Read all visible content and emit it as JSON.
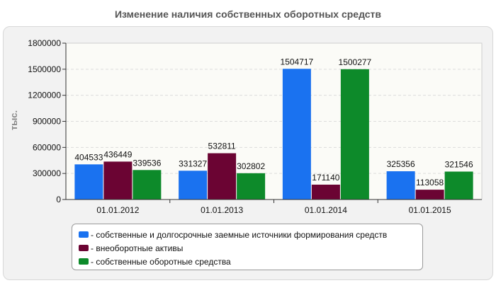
{
  "chart_data": {
    "type": "bar",
    "title": "Изменение наличия собственных оборотных средств",
    "ylabel": "тыс.",
    "xlabel": "",
    "ylim": [
      0,
      1800000
    ],
    "yticks": [
      0,
      300000,
      600000,
      900000,
      1200000,
      1500000,
      1800000
    ],
    "grid": true,
    "legend_position": "bottom",
    "categories": [
      "01.01.2012",
      "01.01.2013",
      "01.01.2014",
      "01.01.2015"
    ],
    "series": [
      {
        "name": "- собственные и долгосрочные заемные источники формирования средств",
        "color": "#1a72f0",
        "values": [
          404533,
          331327,
          1504717,
          325356
        ]
      },
      {
        "name": "- внеоборотные активы",
        "color": "#6b0433",
        "values": [
          436449,
          532811,
          171140,
          113058
        ]
      },
      {
        "name": "- собственные оборотные средства",
        "color": "#0d8a2a",
        "values": [
          339536,
          302802,
          1500277,
          321546
        ]
      }
    ]
  }
}
